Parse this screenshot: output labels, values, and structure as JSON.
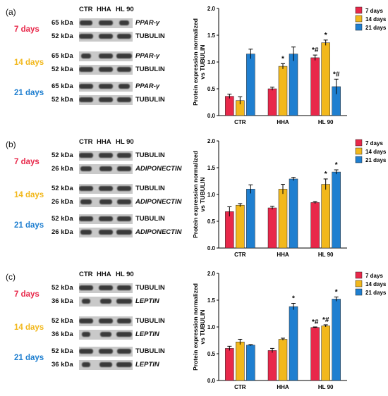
{
  "panels": [
    {
      "label": "(a)",
      "lane_headers": [
        "CTR",
        "HHA",
        "HL 90"
      ],
      "groups": [
        {
          "day": "7 days",
          "color": "#e8284a",
          "rows": [
            {
              "kda": "65 kDa",
              "protein": "PPAR-γ",
              "italic": true
            },
            {
              "kda": "52 kDa",
              "protein": "TUBULIN",
              "italic": false
            }
          ]
        },
        {
          "day": "14 days",
          "color": "#f2b81c",
          "rows": [
            {
              "kda": "65 kDa",
              "protein": "PPAR-γ",
              "italic": true
            },
            {
              "kda": "52 kDa",
              "protein": "TUBULIN",
              "italic": false
            }
          ]
        },
        {
          "day": "21 days",
          "color": "#1f7fd0",
          "rows": [
            {
              "kda": "65 kDa",
              "protein": "PPAR-γ",
              "italic": true
            },
            {
              "kda": "52 kDa",
              "protein": "TUBULIN",
              "italic": false
            }
          ]
        }
      ]
    },
    {
      "label": "(b)",
      "lane_headers": [
        "CTR",
        "HHA",
        "HL 90"
      ],
      "groups": [
        {
          "day": "7 days",
          "color": "#e8284a",
          "rows": [
            {
              "kda": "52 kDa",
              "protein": "TUBULIN",
              "italic": false
            },
            {
              "kda": "26 kDa",
              "protein": "ADIPONECTIN",
              "italic": true
            }
          ]
        },
        {
          "day": "14 days",
          "color": "#f2b81c",
          "rows": [
            {
              "kda": "52 kDa",
              "protein": "TUBULIN",
              "italic": false
            },
            {
              "kda": "26 kDa",
              "protein": "ADIPONECTIN",
              "italic": true
            }
          ]
        },
        {
          "day": "21 days",
          "color": "#1f7fd0",
          "rows": [
            {
              "kda": "52 kDa",
              "protein": "TUBULIN",
              "italic": false
            },
            {
              "kda": "26 kDa",
              "protein": "ADIPONECTIN",
              "italic": true
            }
          ]
        }
      ]
    },
    {
      "label": "(c)",
      "lane_headers": [
        "CTR",
        "HHA",
        "HL 90"
      ],
      "groups": [
        {
          "day": "7 days",
          "color": "#e8284a",
          "rows": [
            {
              "kda": "52 kDa",
              "protein": "TUBULIN",
              "italic": false
            },
            {
              "kda": "36 kDa",
              "protein": "LEPTIN",
              "italic": true
            }
          ]
        },
        {
          "day": "14 days",
          "color": "#f2b81c",
          "rows": [
            {
              "kda": "52 kDa",
              "protein": "TUBULIN",
              "italic": false
            },
            {
              "kda": "36 kDa",
              "protein": "LEPTIN",
              "italic": true
            }
          ]
        },
        {
          "day": "21 days",
          "color": "#1f7fd0",
          "rows": [
            {
              "kda": "52 kDa",
              "protein": "TUBULIN",
              "italic": false
            },
            {
              "kda": "36 kDa",
              "protein": "LEPTIN",
              "italic": true
            }
          ]
        }
      ]
    }
  ],
  "chart_data": [
    {
      "type": "bar",
      "ylabel": "Protein expression normalized vs TUBULIN",
      "ylim": [
        0,
        2.0
      ],
      "yticks": [
        "0.0",
        "0.5",
        "1.0",
        "1.5",
        "2.0"
      ],
      "categories": [
        "CTR",
        "HHA",
        "HL 90"
      ],
      "legend_position": "top-right",
      "series": [
        {
          "name": "7 days",
          "color": "#e8284a",
          "values": [
            0.36,
            0.5,
            1.08
          ],
          "errors": [
            0.04,
            0.03,
            0.05
          ],
          "annotations": [
            "",
            "",
            "*#"
          ]
        },
        {
          "name": "14 days",
          "color": "#f2b81c",
          "values": [
            0.28,
            0.92,
            1.36
          ],
          "errors": [
            0.07,
            0.05,
            0.05
          ],
          "annotations": [
            "",
            "*",
            "*"
          ]
        },
        {
          "name": "21 days",
          "color": "#1f7fd0",
          "values": [
            1.15,
            1.15,
            0.54
          ],
          "errors": [
            0.09,
            0.13,
            0.14
          ],
          "annotations": [
            "",
            "",
            "*#"
          ]
        }
      ]
    },
    {
      "type": "bar",
      "ylabel": "Protein expression normalized vs TUBULIN",
      "ylim": [
        0,
        2.0
      ],
      "yticks": [
        "0.0",
        "0.5",
        "1.0",
        "1.5",
        "2.0"
      ],
      "categories": [
        "CTR",
        "HHA",
        "HL 90"
      ],
      "legend_position": "top-right",
      "series": [
        {
          "name": "7 days",
          "color": "#e8284a",
          "values": [
            0.68,
            0.75,
            0.85
          ],
          "errors": [
            0.09,
            0.03,
            0.02
          ],
          "annotations": [
            "",
            "",
            ""
          ]
        },
        {
          "name": "14 days",
          "color": "#f2b81c",
          "values": [
            0.8,
            1.1,
            1.19
          ],
          "errors": [
            0.03,
            0.09,
            0.1
          ],
          "annotations": [
            "",
            "",
            "*"
          ]
        },
        {
          "name": "21 days",
          "color": "#1f7fd0",
          "values": [
            1.1,
            1.29,
            1.42
          ],
          "errors": [
            0.08,
            0.03,
            0.04
          ],
          "annotations": [
            "",
            "",
            "*"
          ]
        }
      ]
    },
    {
      "type": "bar",
      "ylabel": "Protein expression normalized vs TUBULIN",
      "ylim": [
        0,
        2.0
      ],
      "yticks": [
        "0.0",
        "0.5",
        "1.0",
        "1.5",
        "2.0"
      ],
      "categories": [
        "CTR",
        "HHA",
        "HL 90"
      ],
      "legend_position": "top-right",
      "series": [
        {
          "name": "7 days",
          "color": "#e8284a",
          "values": [
            0.6,
            0.56,
            0.99
          ],
          "errors": [
            0.04,
            0.04,
            0.01
          ],
          "annotations": [
            "",
            "",
            "*#"
          ]
        },
        {
          "name": "14 days",
          "color": "#f2b81c",
          "values": [
            0.72,
            0.77,
            1.02
          ],
          "errors": [
            0.05,
            0.02,
            0.02
          ],
          "annotations": [
            "",
            "",
            "*#"
          ]
        },
        {
          "name": "21 days",
          "color": "#1f7fd0",
          "values": [
            0.66,
            1.38,
            1.52
          ],
          "errors": [
            0.01,
            0.06,
            0.04
          ],
          "annotations": [
            "",
            "*",
            "*"
          ]
        }
      ]
    }
  ]
}
